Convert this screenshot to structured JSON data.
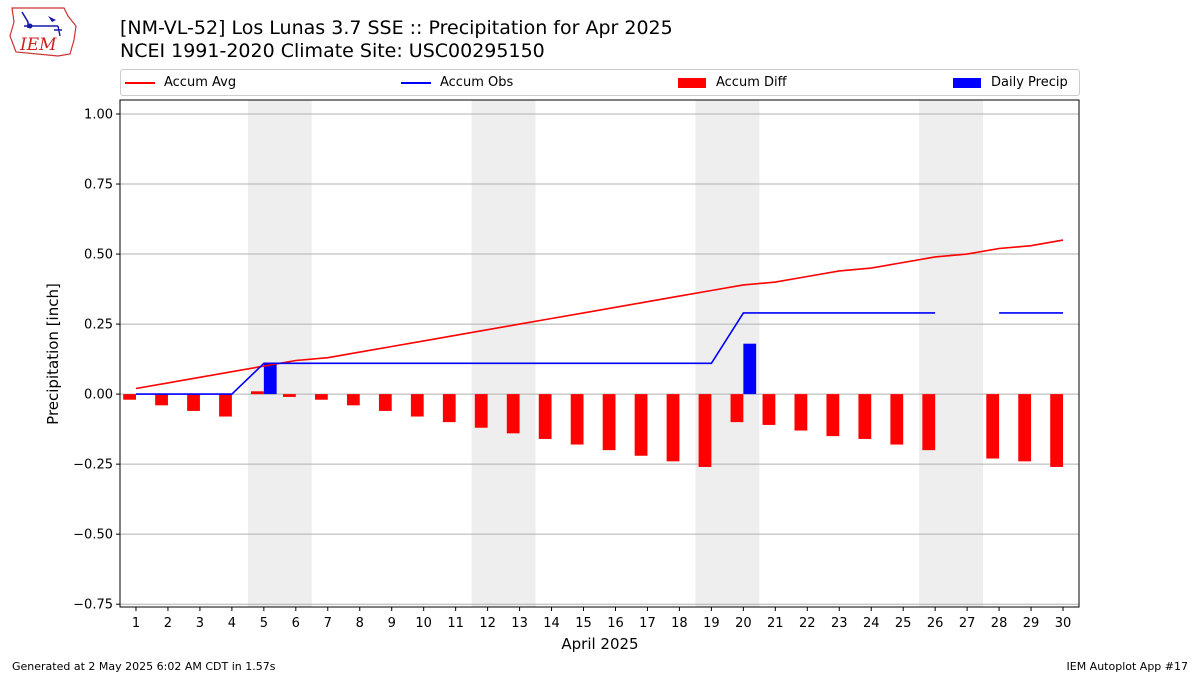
{
  "header": {
    "title_line1": "[NM-VL-52] Los Lunas 3.7 SSE :: Precipitation for Apr 2025",
    "title_line2": "NCEI 1991-2020 Climate Site: USC00295150",
    "logo_text": "IEM"
  },
  "footer": {
    "generated": "Generated at 2 May 2025 6:02 AM CDT in 1.57s",
    "app": "IEM Autoplot App #17"
  },
  "chart_data": {
    "type": "bar",
    "title": "[NM-VL-52] Los Lunas 3.7 SSE :: Precipitation for Apr 2025",
    "xlabel": "April 2025",
    "ylabel": "Precipitation [inch]",
    "x": [
      1,
      2,
      3,
      4,
      5,
      6,
      7,
      8,
      9,
      10,
      11,
      12,
      13,
      14,
      15,
      16,
      17,
      18,
      19,
      20,
      21,
      22,
      23,
      24,
      25,
      26,
      27,
      28,
      29,
      30
    ],
    "xlim": [
      0.5,
      30.5
    ],
    "ylim": [
      -0.76,
      1.05
    ],
    "yticks": [
      1.0,
      0.75,
      0.5,
      0.25,
      0.0,
      -0.25,
      -0.5,
      -0.75
    ],
    "ytick_labels": [
      "1.00",
      "0.75",
      "0.50",
      "0.25",
      "0.00",
      "−0.25",
      "−0.50",
      "−0.75"
    ],
    "grid": "horizontal",
    "legend_placement": "top",
    "weekend_shading": [
      [
        5,
        6
      ],
      [
        12,
        13
      ],
      [
        19,
        20
      ],
      [
        26,
        27
      ]
    ],
    "series": [
      {
        "name": "Accum Avg",
        "kind": "line",
        "color": "#ff0000",
        "values": [
          0.02,
          0.04,
          0.06,
          0.08,
          0.1,
          0.12,
          0.13,
          0.15,
          0.17,
          0.19,
          0.21,
          0.23,
          0.25,
          0.27,
          0.29,
          0.31,
          0.33,
          0.35,
          0.37,
          0.39,
          0.4,
          0.42,
          0.44,
          0.45,
          0.47,
          0.49,
          0.5,
          0.52,
          0.53,
          0.55
        ]
      },
      {
        "name": "Accum Obs",
        "kind": "line",
        "color": "#0000ff",
        "values": [
          0.0,
          0.0,
          0.0,
          0.0,
          0.11,
          0.11,
          0.11,
          0.11,
          0.11,
          0.11,
          0.11,
          0.11,
          0.11,
          0.11,
          0.11,
          0.11,
          0.11,
          0.11,
          0.11,
          0.29,
          0.29,
          0.29,
          0.29,
          0.29,
          0.29,
          0.29,
          null,
          0.29,
          0.29,
          0.29
        ]
      },
      {
        "name": "Accum Diff",
        "kind": "bar",
        "color": "#ff0000",
        "values": [
          -0.02,
          -0.04,
          -0.06,
          -0.08,
          0.01,
          -0.01,
          -0.02,
          -0.04,
          -0.06,
          -0.08,
          -0.1,
          -0.12,
          -0.14,
          -0.16,
          -0.18,
          -0.2,
          -0.22,
          -0.24,
          -0.26,
          -0.1,
          -0.11,
          -0.13,
          -0.15,
          -0.16,
          -0.18,
          -0.2,
          null,
          -0.23,
          -0.24,
          -0.26
        ]
      },
      {
        "name": "Daily Precip",
        "kind": "bar",
        "color": "#0000ff",
        "values": [
          0,
          0,
          0,
          0,
          0.11,
          0,
          0,
          0,
          0,
          0,
          0,
          0,
          0,
          0,
          0,
          0,
          0,
          0,
          0,
          0.18,
          0,
          0,
          0,
          0,
          0,
          0,
          null,
          0,
          0,
          0
        ]
      }
    ]
  }
}
